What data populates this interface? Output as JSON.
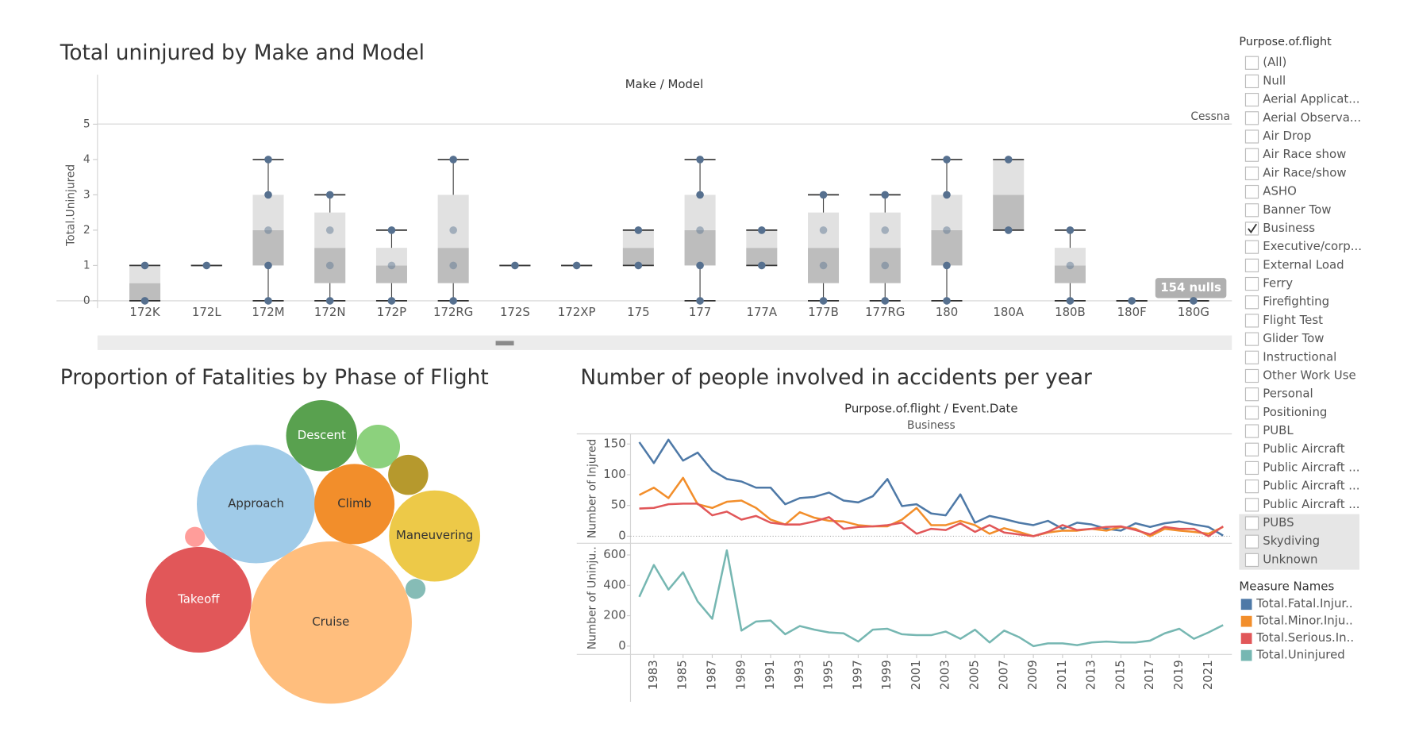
{
  "chart_data": [
    {
      "type": "box",
      "title": "Total uninjured by Make and Model",
      "header": "Make / Model",
      "panel_label": "Cessna",
      "y_label": "Total.Uninjured",
      "categories": [
        "172K",
        "172L",
        "172M",
        "172N",
        "172P",
        "172RG",
        "172S",
        "172XP",
        "175",
        "177",
        "177A",
        "177B",
        "177RG",
        "180",
        "180A",
        "180B",
        "180F",
        "180G"
      ],
      "whisker_low": [
        0,
        1,
        0,
        0,
        0,
        0,
        1,
        1,
        1,
        0,
        1,
        0,
        0,
        0,
        2,
        0,
        0,
        0
      ],
      "q1": [
        0,
        1,
        1,
        0.5,
        0.5,
        0.5,
        1,
        1,
        1,
        1,
        1,
        0.5,
        0.5,
        1,
        2,
        0.5,
        0,
        0
      ],
      "median": [
        0.5,
        1,
        2,
        1.5,
        1,
        1.5,
        1,
        1,
        1.5,
        2,
        1.5,
        1.5,
        1.5,
        2,
        3,
        1,
        0,
        0
      ],
      "q3": [
        1,
        1,
        3,
        2.5,
        1.5,
        3,
        1,
        1,
        2,
        3,
        2,
        2.5,
        2.5,
        3,
        4,
        1.5,
        0,
        0
      ],
      "whisker_high": [
        1,
        1,
        4,
        3,
        2,
        4,
        1,
        1,
        2,
        4,
        2,
        3,
        3,
        4,
        4,
        2,
        0,
        0
      ],
      "points": [
        [
          0,
          1
        ],
        [
          1
        ],
        [
          0,
          1,
          2,
          3,
          4
        ],
        [
          0,
          1,
          2,
          3
        ],
        [
          0,
          1,
          2
        ],
        [
          0,
          1,
          2,
          4
        ],
        [
          1
        ],
        [
          1
        ],
        [
          1,
          2
        ],
        [
          0,
          1,
          2,
          3,
          4
        ],
        [
          1,
          2
        ],
        [
          0,
          1,
          2,
          3
        ],
        [
          0,
          1,
          2,
          3
        ],
        [
          0,
          1,
          2,
          3,
          4
        ],
        [
          2,
          4
        ],
        [
          0,
          1,
          2
        ],
        [
          0
        ],
        [
          0
        ]
      ],
      "point_color": "#56708f",
      "box_colors": [
        "#bdbdbd",
        "#e1e1e1"
      ],
      "ylim": [
        -0.2,
        5.2
      ],
      "yticks": [
        0,
        1,
        2,
        3,
        4,
        5
      ],
      "annotation": "154 nulls"
    },
    {
      "type": "bubble",
      "title": "Proportion of Fatalities by Phase of Flight",
      "categories": [
        "Approach",
        "Cruise",
        "Takeoff",
        "Climb",
        "Descent",
        "Maneuvering",
        null,
        null,
        null,
        null
      ],
      "values": [
        4225,
        7921,
        3364,
        1936,
        1521,
        2500,
        576,
        484,
        121,
        121
      ],
      "colors": [
        "#a0cbe8",
        "#ffbe7d",
        "#e15759",
        "#f28e2b",
        "#59a14f",
        "#edc948",
        "#8cd17d",
        "#b6992d",
        "#ff9d9a",
        "#86bcb6"
      ]
    },
    {
      "type": "line",
      "title": "Number of people involved in accidents per year",
      "header": "Purpose.of.flight / Event.Date",
      "panel_label": "Business",
      "y_label": "Number of Injured",
      "y2_label": "Number of Uninju..",
      "legend_title": "Measure Names",
      "x": [
        1982,
        1983,
        1984,
        1985,
        1986,
        1987,
        1988,
        1989,
        1990,
        1991,
        1992,
        1993,
        1994,
        1995,
        1996,
        1997,
        1998,
        1999,
        2000,
        2001,
        2002,
        2003,
        2004,
        2005,
        2006,
        2007,
        2008,
        2009,
        2010,
        2011,
        2012,
        2013,
        2014,
        2015,
        2016,
        2017,
        2018,
        2019,
        2020,
        2021,
        2022
      ],
      "xlim": [
        1981.4,
        2022.6
      ],
      "xticks": [
        1983,
        1985,
        1987,
        1989,
        1991,
        1993,
        1995,
        1997,
        1999,
        2001,
        2003,
        2005,
        2007,
        2009,
        2011,
        2013,
        2015,
        2017,
        2019,
        2021
      ],
      "ylim": [
        -10,
        165
      ],
      "yticks": [
        0,
        50,
        100,
        150
      ],
      "y2lim": [
        -55,
        665
      ],
      "y2ticks": [
        0,
        200,
        400,
        600
      ],
      "series": [
        {
          "name": "Total.Fatal.Injur..",
          "color": "#4e79a7",
          "values": [
            153,
            119,
            157,
            123,
            136,
            107,
            93,
            89,
            79,
            79,
            52,
            62,
            64,
            71,
            58,
            55,
            65,
            93,
            49,
            52,
            37,
            34,
            68,
            22,
            33,
            28,
            22,
            18,
            25,
            12,
            22,
            19,
            12,
            9,
            21,
            15,
            21,
            24,
            19,
            15,
            1
          ]
        },
        {
          "name": "Total.Minor.Inju..",
          "color": "#f28e2b",
          "values": [
            67,
            79,
            62,
            95,
            52,
            46,
            56,
            58,
            46,
            27,
            19,
            39,
            30,
            25,
            24,
            18,
            16,
            16,
            27,
            46,
            18,
            18,
            25,
            18,
            4,
            13,
            7,
            0,
            6,
            9,
            9,
            12,
            9,
            15,
            12,
            0,
            12,
            9,
            7,
            4,
            15
          ]
        },
        {
          "name": "Total.Serious.In..",
          "color": "#e15759",
          "values": [
            45,
            46,
            52,
            53,
            53,
            34,
            40,
            27,
            33,
            22,
            19,
            19,
            24,
            31,
            12,
            15,
            16,
            18,
            22,
            4,
            12,
            10,
            21,
            7,
            18,
            6,
            3,
            0,
            7,
            18,
            10,
            12,
            15,
            16,
            10,
            3,
            15,
            12,
            12,
            0,
            16
          ]
        },
        {
          "name": "Total.Uninjured",
          "color": "#76b7b2",
          "axis": "y2",
          "values": [
            324,
            534,
            372,
            486,
            294,
            180,
            630,
            102,
            162,
            168,
            78,
            132,
            108,
            90,
            84,
            30,
            108,
            114,
            78,
            72,
            72,
            96,
            48,
            108,
            24,
            102,
            60,
            0,
            18,
            18,
            6,
            24,
            30,
            24,
            24,
            36,
            84,
            114,
            48,
            90,
            138
          ]
        }
      ]
    }
  ],
  "filter": {
    "title": "Purpose.of.flight",
    "items": [
      {
        "label": "(All)",
        "checked": false
      },
      {
        "label": "Null",
        "checked": false
      },
      {
        "label": "Aerial Applicat...",
        "checked": false
      },
      {
        "label": "Aerial Observa...",
        "checked": false
      },
      {
        "label": "Air Drop",
        "checked": false
      },
      {
        "label": "Air Race show",
        "checked": false
      },
      {
        "label": "Air Race/show",
        "checked": false
      },
      {
        "label": "ASHO",
        "checked": false
      },
      {
        "label": "Banner Tow",
        "checked": false
      },
      {
        "label": "Business",
        "checked": true
      },
      {
        "label": "Executive/corp...",
        "checked": false
      },
      {
        "label": "External Load",
        "checked": false
      },
      {
        "label": "Ferry",
        "checked": false
      },
      {
        "label": "Firefighting",
        "checked": false
      },
      {
        "label": "Flight Test",
        "checked": false
      },
      {
        "label": "Glider Tow",
        "checked": false
      },
      {
        "label": "Instructional",
        "checked": false
      },
      {
        "label": "Other Work Use",
        "checked": false
      },
      {
        "label": "Personal",
        "checked": false
      },
      {
        "label": "Positioning",
        "checked": false
      },
      {
        "label": "PUBL",
        "checked": false
      },
      {
        "label": "Public Aircraft",
        "checked": false
      },
      {
        "label": "Public Aircraft ...",
        "checked": false
      },
      {
        "label": "Public Aircraft ...",
        "checked": false
      },
      {
        "label": "Public Aircraft ...",
        "checked": false
      },
      {
        "label": "PUBS",
        "checked": false
      },
      {
        "label": "Skydiving",
        "checked": false
      },
      {
        "label": "Unknown",
        "checked": false
      }
    ]
  }
}
